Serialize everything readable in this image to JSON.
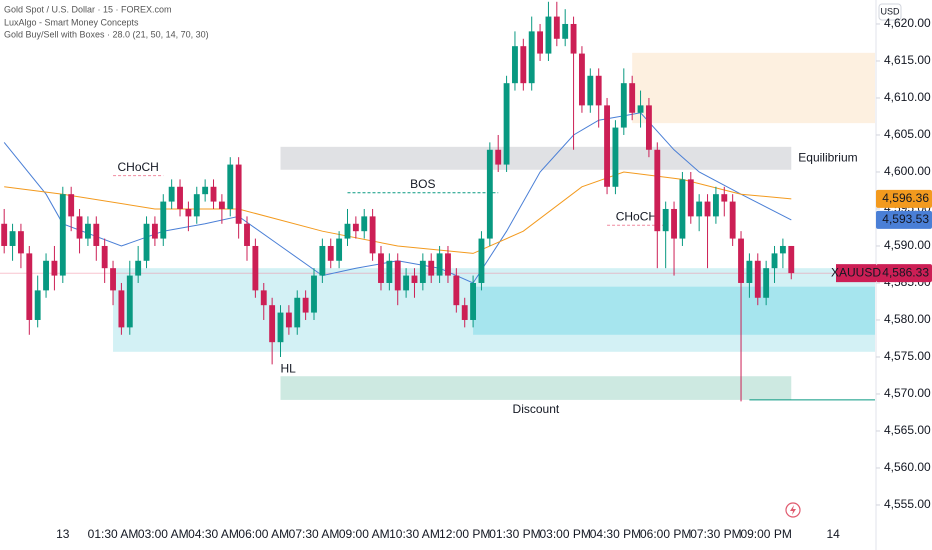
{
  "chart_data": {
    "type": "candlestick",
    "legend_lines": [
      "Gold Spot / U.S. Dollar · 15 · FOREX.com",
      "LuxAlgo - Smart Money Concepts",
      "Gold Buy/Sell with Boxes · 28.0 (21, 50, 14, 70, 30)"
    ],
    "currency": "USD",
    "symbol": "XAUUSD",
    "last_label": "4,586.33",
    "up_color": "#089981",
    "down_color": "#cc1f55",
    "categories": [
      null,
      null,
      null,
      null,
      null,
      null,
      null,
      "13",
      null,
      null,
      null,
      null,
      null,
      "01:30 AM",
      null,
      null,
      null,
      null,
      null,
      "03:00 AM",
      null,
      null,
      null,
      null,
      null,
      "04:30 AM",
      null,
      null,
      null,
      null,
      null,
      "06:00 AM",
      null,
      null,
      null,
      null,
      null,
      "07:30 AM",
      null,
      null,
      null,
      null,
      null,
      "09:00 AM",
      null,
      null,
      null,
      null,
      null,
      "10:30 AM",
      null,
      null,
      null,
      null,
      null,
      "12:00 PM",
      null,
      null,
      null,
      null,
      null,
      "01:30 PM",
      null,
      null,
      null,
      null,
      null,
      "03:00 PM",
      null,
      null,
      null,
      null,
      null,
      "04:30 PM",
      null,
      null,
      null,
      null,
      null,
      "06:00 PM",
      null,
      null,
      null,
      null,
      null,
      "07:30 PM",
      null,
      null,
      null,
      null,
      null,
      "09:00 PM",
      null,
      null,
      null,
      null,
      null,
      null,
      null,
      "14"
    ],
    "open": [
      4593,
      4590,
      4592,
      4589,
      4580,
      4584,
      4588,
      4586,
      4597,
      4594,
      4591,
      4593,
      4590,
      4587,
      4584,
      4579,
      4586,
      4588,
      4593,
      4591,
      4596,
      4598,
      4595,
      4594,
      4597,
      4598,
      4596,
      4595,
      4601,
      4593,
      4590,
      4584,
      4582,
      4577,
      4581,
      4579,
      4583,
      4581,
      4586,
      4590,
      4588,
      4591,
      4593,
      4592,
      4594,
      4589,
      4585,
      4588,
      4584,
      4586,
      4585,
      4588,
      4586,
      4589,
      4586,
      4582,
      4580,
      4585,
      4591,
      4603,
      4601,
      4612,
      4617,
      4612,
      4619,
      4616,
      4621,
      4618,
      4620,
      4616,
      4609,
      4613,
      4609,
      4598,
      4606,
      4612,
      4608,
      4609,
      4603,
      4592,
      4595,
      4591,
      4599,
      4594,
      4596,
      4594,
      4597,
      4596,
      4591,
      4585,
      4588,
      4583,
      4587,
      4589,
      4590,
      null,
      null,
      null,
      null,
      null
    ],
    "high": [
      4595,
      4593,
      4593,
      4590,
      4586,
      4589,
      4590,
      4598,
      4598,
      4595,
      4594,
      4594,
      4591,
      4588,
      4585,
      4588,
      4590,
      4594,
      4594,
      4597,
      4599,
      4599,
      4596,
      4598,
      4599,
      4599,
      4597,
      4602,
      4602,
      4594,
      4591,
      4585,
      4583,
      4582,
      4582,
      4584,
      4584,
      4587,
      4591,
      4591,
      4592,
      4595,
      4594,
      4595,
      4595,
      4590,
      4589,
      4589,
      4587,
      4587,
      4589,
      4589,
      4590,
      4590,
      4587,
      4583,
      4586,
      4592,
      4604,
      4605,
      4613,
      4619,
      4618,
      4621,
      4620,
      4623,
      4623,
      4622,
      4621,
      4617,
      4614,
      4614,
      4610,
      4607,
      4614,
      4613,
      4611,
      4610,
      4604,
      4596,
      4596,
      4600,
      4600,
      4597,
      4597,
      4598,
      4598,
      4597,
      4592,
      4589,
      4589,
      4588,
      4590,
      4591,
      4590,
      null,
      null,
      null,
      null,
      null
    ],
    "low": [
      4589,
      4588,
      4587,
      4578,
      4579,
      4583,
      4584,
      4585,
      4592,
      4589,
      4590,
      4588,
      4585,
      4582,
      4578,
      4578,
      4585,
      4587,
      4590,
      4590,
      4595,
      4594,
      4592,
      4593,
      4596,
      4595,
      4593,
      4594,
      4591,
      4588,
      4583,
      4580,
      4574,
      4575,
      4578,
      4578,
      4580,
      4580,
      4585,
      4587,
      4587,
      4590,
      4591,
      4591,
      4588,
      4584,
      4584,
      4582,
      4583,
      4583,
      4584,
      4585,
      4585,
      4585,
      4581,
      4579,
      4579,
      4584,
      4590,
      4600,
      4600,
      4611,
      4611,
      4611,
      4615,
      4615,
      4617,
      4617,
      4603,
      4608,
      4608,
      4606,
      4597,
      4597,
      4605,
      4607,
      4606,
      4602,
      4587,
      4587,
      4586,
      4590,
      4593,
      4592,
      4587,
      4593,
      4594,
      4590,
      4569,
      4583,
      4582,
      4582,
      4585,
      4587,
      4585.5,
      null,
      null,
      null,
      null,
      null
    ],
    "close": [
      4590,
      4592,
      4589,
      4580,
      4584,
      4588,
      4586,
      4597,
      4594,
      4591,
      4593,
      4590,
      4587,
      4584,
      4579,
      4586,
      4588,
      4593,
      4591,
      4596,
      4598,
      4595,
      4594,
      4597,
      4598,
      4596,
      4595,
      4601,
      4593,
      4590,
      4584,
      4582,
      4577,
      4581,
      4579,
      4583,
      4581,
      4586,
      4590,
      4588,
      4591,
      4593,
      4592,
      4594,
      4589,
      4585,
      4588,
      4584,
      4586,
      4585,
      4588,
      4586,
      4589,
      4586,
      4582,
      4580,
      4585,
      4591,
      4603,
      4601,
      4612,
      4617,
      4612,
      4619,
      4616,
      4621,
      4618,
      4620,
      4616,
      4609,
      4613,
      4609,
      4598,
      4606,
      4612,
      4608,
      4609,
      4603,
      4592,
      4595,
      4591,
      4599,
      4594,
      4596,
      4594,
      4597,
      4596,
      4591,
      4585,
      4588,
      4583,
      4587,
      4589,
      4590,
      4586.33,
      null,
      null,
      null,
      null,
      null
    ],
    "series": [
      {
        "type": "line",
        "color": "#4a7fd6",
        "last_label": "4,593.53",
        "x": [
          0,
          5,
          7,
          14,
          19,
          24,
          28,
          33,
          38,
          42,
          47,
          52,
          56,
          60,
          64,
          68,
          71,
          76,
          80,
          83,
          88,
          94
        ],
        "values": [
          4604,
          4597,
          4593,
          4590,
          4592,
          4593,
          4594,
          4590,
          4586,
          4587,
          4588,
          4587,
          4585,
          4592,
          4600,
          4605,
          4607,
          4608,
          4603,
          4600,
          4597,
          4593.53
        ]
      },
      {
        "type": "line",
        "color": "#f39a1e",
        "last_label": "4,596.36",
        "x": [
          0,
          7,
          18,
          28,
          38,
          47,
          56,
          62,
          69,
          74,
          81,
          88,
          94
        ],
        "values": [
          4598,
          4597,
          4595,
          4595,
          4592,
          4590,
          4589,
          4592,
          4598,
          4600,
          4599,
          4597,
          4596.36
        ]
      }
    ],
    "zones": [
      {
        "top": 4616.1,
        "bottom": 4606.6,
        "x": [
          75,
          104
        ],
        "color": "#fdf0e0"
      },
      {
        "top": 4587,
        "bottom": 4575.7,
        "x": [
          13,
          104
        ],
        "color": "#d3f1f5"
      },
      {
        "top": 4584.5,
        "bottom": 4578,
        "x": [
          56,
          104
        ],
        "color": "#a6e5ee"
      },
      {
        "top": 4603.4,
        "bottom": 4600.3,
        "x": [
          33,
          94
        ],
        "color": "#e0e1e4",
        "label": "Equilibrium"
      },
      {
        "top": 4572.4,
        "bottom": 4569.2,
        "x": [
          33,
          94
        ],
        "color": "#cde9e1",
        "label": "Discount"
      }
    ],
    "levels": [
      {
        "value": 4599.5,
        "x": [
          13,
          19
        ],
        "color": "#f08a9f",
        "label": "CHoCH"
      },
      {
        "value": 4597.2,
        "x": [
          41,
          59
        ],
        "color": "#089981",
        "label": "BOS"
      },
      {
        "value": 4592.8,
        "x": [
          72,
          79
        ],
        "color": "#f08a9f",
        "label": "CHoCH"
      },
      {
        "value": 4569.2,
        "x": [
          89,
          104
        ],
        "color": "#089981"
      }
    ],
    "annotations": [
      {
        "text": "HL",
        "x": 33,
        "y": 4573.3
      }
    ],
    "xlim": [
      -0.5,
      104
    ],
    "ylim": [
      4552.97,
      4623.24
    ],
    "yticks": [
      {
        "value": 4555,
        "label": "4,555.00"
      },
      {
        "value": 4560,
        "label": "4,560.00"
      },
      {
        "value": 4565,
        "label": "4,565.00"
      },
      {
        "value": 4570,
        "label": "4,570.00"
      },
      {
        "value": 4575,
        "label": "4,575.00"
      },
      {
        "value": 4580,
        "label": "4,580.00"
      },
      {
        "value": 4585,
        "label": "4,585.00"
      },
      {
        "value": 4590,
        "label": "4,590.00"
      },
      {
        "value": 4595,
        "label": "4,595.00"
      },
      {
        "value": 4600,
        "label": "4,600.00"
      },
      {
        "value": 4605,
        "label": "4,605.00"
      },
      {
        "value": 4610,
        "label": "4,610.00"
      },
      {
        "value": 4615,
        "label": "4,615.00"
      },
      {
        "value": 4620,
        "label": "4,620.00"
      }
    ]
  }
}
